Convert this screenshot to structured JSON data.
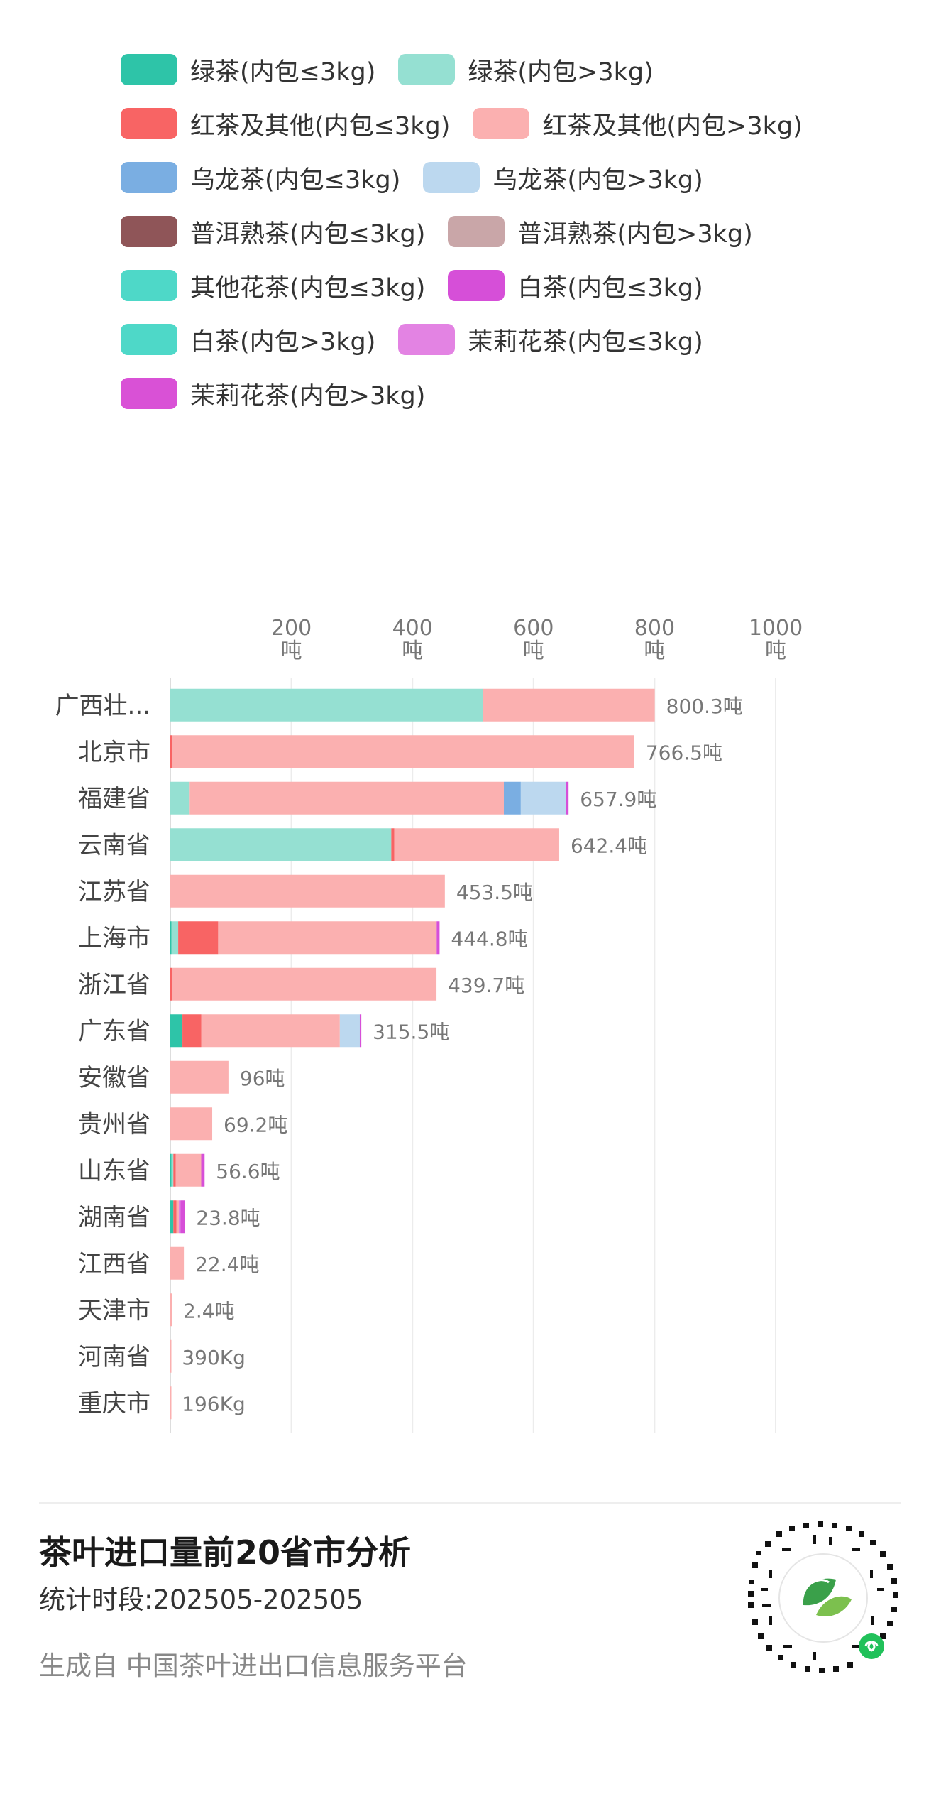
{
  "legend": [
    {
      "label": "绿茶(内包≤3kg)",
      "color": "#2ec4a8"
    },
    {
      "label": "绿茶(内包>3kg)",
      "color": "#95e0d2"
    },
    {
      "label": "红茶及其他(内包≤3kg)",
      "color": "#f86464"
    },
    {
      "label": "红茶及其他(内包>3kg)",
      "color": "#fbb0b0"
    },
    {
      "label": "乌龙茶(内包≤3kg)",
      "color": "#7aaee2"
    },
    {
      "label": "乌龙茶(内包>3kg)",
      "color": "#bcd8ef"
    },
    {
      "label": "普洱熟茶(内包≤3kg)",
      "color": "#8f5558"
    },
    {
      "label": "普洱熟茶(内包>3kg)",
      "color": "#c9a6a8"
    },
    {
      "label": "其他花茶(内包≤3kg)",
      "color": "#4ed8c8"
    },
    {
      "label": "白茶(内包≤3kg)",
      "color": "#d64fd8"
    },
    {
      "label": "白茶(内包>3kg)",
      "color": "#4ed8c8"
    },
    {
      "label": "茉莉花茶(内包≤3kg)",
      "color": "#e383e3"
    },
    {
      "label": "茉莉花茶(内包>3kg)",
      "color": "#d951d6"
    }
  ],
  "chart_data": {
    "type": "bar",
    "orientation": "horizontal",
    "stacked": true,
    "unit": "吨",
    "xlim": [
      0,
      1000
    ],
    "x_ticks": [
      {
        "value": 200,
        "label": "200\n吨"
      },
      {
        "value": 400,
        "label": "400\n吨"
      },
      {
        "value": 600,
        "label": "600\n吨"
      },
      {
        "value": 800,
        "label": "800\n吨"
      },
      {
        "value": 1000,
        "label": "1000\n吨"
      }
    ],
    "grid": true,
    "legend_position": "top",
    "categories": [
      "广西壮...",
      "北京市",
      "福建省",
      "云南省",
      "江苏省",
      "上海市",
      "浙江省",
      "广东省",
      "安徽省",
      "贵州省",
      "山东省",
      "湖南省",
      "江西省",
      "天津市",
      "河南省",
      "重庆市"
    ],
    "totals": [
      800.3,
      766.5,
      657.9,
      642.4,
      453.5,
      444.8,
      439.7,
      315.5,
      96,
      69.2,
      56.6,
      23.8,
      22.4,
      2.4,
      0.39,
      0.196
    ],
    "total_labels": [
      "800.3吨",
      "766.5吨",
      "657.9吨",
      "642.4吨",
      "453.5吨",
      "444.8吨",
      "439.7吨",
      "315.5吨",
      "96吨",
      "69.2吨",
      "56.6吨",
      "23.8吨",
      "22.4吨",
      "2.4吨",
      "390Kg",
      "196Kg"
    ],
    "series": [
      {
        "name": "绿茶(内包≤3kg)",
        "color": "#2ec4a8",
        "values": [
          0,
          0,
          0,
          0,
          0,
          2,
          0,
          20,
          0,
          0,
          2,
          5,
          0,
          0,
          0,
          0
        ]
      },
      {
        "name": "绿茶(内包>3kg)",
        "color": "#95e0d2",
        "values": [
          517,
          0,
          32,
          365,
          0,
          11,
          0,
          0,
          0,
          0,
          3,
          0,
          0,
          0,
          0,
          0
        ]
      },
      {
        "name": "红茶及其他(内包≤3kg)",
        "color": "#f86464",
        "values": [
          0,
          3,
          0,
          5,
          0,
          66,
          3,
          31,
          0,
          0,
          4,
          5,
          0,
          0,
          0,
          0
        ]
      },
      {
        "name": "红茶及其他(内包>3kg)",
        "color": "#fbb0b0",
        "values": [
          283.3,
          763.5,
          519,
          272.4,
          453.5,
          361,
          436.7,
          229,
          96,
          69.2,
          42,
          4,
          22.4,
          2.4,
          0.39,
          0.196
        ]
      },
      {
        "name": "乌龙茶(内包≤3kg)",
        "color": "#7aaee2",
        "values": [
          0,
          0,
          28,
          0,
          0,
          0,
          0,
          0,
          0,
          0,
          0,
          0,
          0,
          0,
          0,
          0
        ]
      },
      {
        "name": "乌龙茶(内包>3kg)",
        "color": "#bcd8ef",
        "values": [
          0,
          0,
          74,
          0,
          0,
          0,
          0,
          33,
          0,
          0,
          0,
          0,
          0,
          0,
          0,
          0
        ]
      },
      {
        "name": "茉莉花茶(内包≤3kg)",
        "color": "#e383e3",
        "values": [
          0,
          0,
          0,
          0,
          0,
          0,
          0,
          0,
          0,
          0,
          0,
          3,
          0,
          0,
          0,
          0
        ]
      },
      {
        "name": "白茶(内包≤3kg)",
        "color": "#d64fd8",
        "values": [
          0,
          0,
          4.9,
          0,
          0,
          4.8,
          0,
          2.5,
          0,
          0,
          5.6,
          6.8,
          0,
          0,
          0,
          0
        ]
      }
    ]
  },
  "footer": {
    "title": "茶叶进口量前20省市分析",
    "period": "统计时段:202505-202505",
    "source": "生成自 中国茶叶进出口信息服务平台"
  }
}
